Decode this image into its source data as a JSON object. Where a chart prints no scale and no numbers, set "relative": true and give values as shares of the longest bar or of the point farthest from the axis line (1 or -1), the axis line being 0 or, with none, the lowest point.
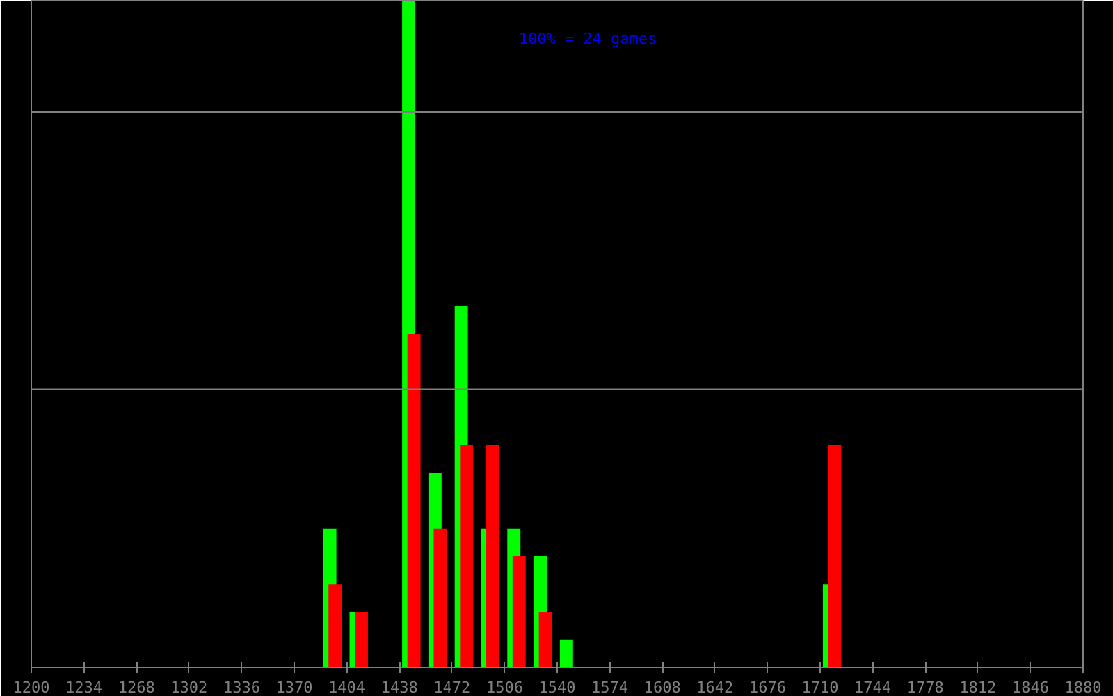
{
  "chart_data": {
    "type": "bar",
    "relative": true,
    "xlim": [
      1200,
      1880
    ],
    "xticks": [
      1200,
      1234,
      1268,
      1302,
      1336,
      1370,
      1404,
      1438,
      1472,
      1506,
      1540,
      1574,
      1608,
      1642,
      1676,
      1710,
      1744,
      1778,
      1812,
      1846,
      1880
    ],
    "annotations": [
      "100% = 24 games"
    ],
    "ref_lines": [
      {
        "axis": "y",
        "value": 0.417,
        "label": null,
        "color": "#808080"
      },
      {
        "axis": "y",
        "value": 0.833,
        "label": null,
        "color": "#808080"
      }
    ],
    "series": [
      {
        "color": "#00ff00",
        "x": [
          1393.0,
          1410.0,
          1444.0,
          1461.0,
          1478.0,
          1495.0,
          1512.0,
          1529.0,
          1546.0,
          1716.0
        ],
        "values": [
          0.208,
          0.083,
          1.0,
          0.292,
          0.542,
          0.208,
          0.208,
          0.167,
          0.042,
          0.125
        ]
      },
      {
        "color": "#ff0000",
        "x": [
          1396.4,
          1413.4,
          1447.4,
          1464.4,
          1481.4,
          1498.4,
          1515.4,
          1532.4,
          1719.4
        ],
        "values": [
          0.125,
          0.083,
          0.5,
          0.208,
          0.333,
          0.333,
          0.167,
          0.083,
          0.333
        ]
      }
    ]
  }
}
